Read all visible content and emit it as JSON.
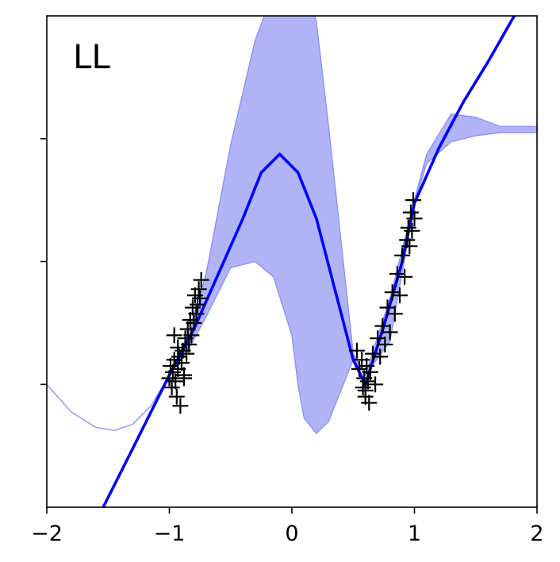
{
  "chart_data": {
    "type": "line",
    "title": "",
    "panel_label": "LL",
    "xlabel": "",
    "ylabel": "",
    "xlim": [
      -2,
      2
    ],
    "ylim": [
      -4,
      4
    ],
    "x_ticks": [
      -2,
      -1,
      0,
      1,
      2
    ],
    "x_tick_labels": [
      "−2",
      "−1",
      "0",
      "1",
      "2"
    ],
    "y_ticks": [
      -2,
      0,
      2
    ],
    "y_tick_labels": [],
    "grid": false,
    "colors": {
      "mean_line": "#0000ff",
      "band_fill": "#b0b4f6",
      "band_edge": "#8e92f2",
      "points": "#000000"
    },
    "series": [
      {
        "kind": "mean",
        "x": [
          -1.54,
          -1.3,
          -1.0,
          -0.8,
          -0.6,
          -0.4,
          -0.25,
          -0.1,
          0.05,
          0.2,
          0.35,
          0.5,
          0.6,
          0.75,
          0.9,
          1.0,
          1.2,
          1.4,
          1.6,
          1.8,
          2.0
        ],
        "y": [
          -4.0,
          -3.05,
          -1.85,
          -1.1,
          -0.2,
          0.7,
          1.45,
          1.75,
          1.45,
          0.7,
          -0.45,
          -1.6,
          -2.0,
          -1.05,
          0.0,
          0.95,
          1.85,
          2.6,
          3.25,
          3.95,
          4.6
        ]
      },
      {
        "kind": "band",
        "x": [
          -2.0,
          -1.8,
          -1.6,
          -1.45,
          -1.3,
          -1.15,
          -1.0,
          -0.85,
          -0.7,
          -0.5,
          -0.3,
          -0.15,
          0.0,
          0.05,
          0.1,
          0.2,
          0.3,
          0.5,
          0.6,
          0.8,
          1.0,
          1.1,
          1.3,
          1.5,
          1.7,
          2.0
        ],
        "upper": [
          -2.0,
          -2.45,
          -2.7,
          -2.75,
          -2.65,
          -2.35,
          -1.85,
          -1.2,
          -0.2,
          1.9,
          3.6,
          4.4,
          4.75,
          4.78,
          4.7,
          3.9,
          2.2,
          -1.5,
          -1.85,
          -0.6,
          1.0,
          1.75,
          2.4,
          2.35,
          2.2,
          2.2
        ],
        "lower": [
          -2.0,
          -2.45,
          -2.7,
          -2.75,
          -2.65,
          -2.35,
          -1.85,
          -1.45,
          -0.9,
          -0.1,
          0.0,
          -0.25,
          -1.2,
          -2.0,
          -2.55,
          -2.8,
          -2.6,
          -1.6,
          -1.85,
          -1.3,
          0.95,
          1.6,
          1.95,
          2.05,
          2.1,
          2.1
        ]
      },
      {
        "kind": "points",
        "marker": "+",
        "x": [
          -1.0,
          -0.99,
          -0.98,
          -0.97,
          -0.96,
          -0.95,
          -0.94,
          -0.93,
          -0.92,
          -0.91,
          -0.9,
          -0.89,
          -0.88,
          -0.87,
          -0.86,
          -0.85,
          -0.84,
          -0.83,
          -0.82,
          -0.81,
          -0.8,
          -0.79,
          -0.78,
          -0.77,
          -0.76,
          -0.75,
          -0.74,
          -0.93,
          -0.88,
          -0.96,
          0.53,
          0.55,
          0.57,
          0.58,
          0.59,
          0.6,
          0.61,
          0.62,
          0.63,
          0.64,
          0.66,
          0.68,
          0.7,
          0.72,
          0.74,
          0.76,
          0.78,
          0.8,
          0.82,
          0.84,
          0.86,
          0.88,
          0.9,
          0.92,
          0.94,
          0.95,
          0.96,
          0.97,
          0.98,
          0.99,
          1.0,
          0.6
        ],
        "y": [
          -1.9,
          -1.7,
          -2.05,
          -1.8,
          -1.6,
          -1.95,
          -2.2,
          -1.75,
          -1.55,
          -2.35,
          -1.65,
          -1.45,
          -1.85,
          -1.25,
          -1.5,
          -1.1,
          -1.35,
          -0.95,
          -1.2,
          -0.75,
          -1.0,
          -0.55,
          -0.85,
          -0.7,
          -0.45,
          -0.6,
          -0.3,
          -1.4,
          -1.9,
          -1.2,
          -1.45,
          -1.75,
          -1.6,
          -2.05,
          -1.9,
          -2.2,
          -1.7,
          -1.95,
          -2.3,
          -1.8,
          -1.5,
          -2.0,
          -1.25,
          -1.55,
          -1.05,
          -1.35,
          -0.75,
          -1.15,
          -0.5,
          -0.85,
          -0.2,
          -0.55,
          0.1,
          -0.25,
          0.35,
          0.55,
          0.25,
          0.8,
          0.5,
          1.0,
          0.7,
          -2.1
        ]
      }
    ]
  }
}
